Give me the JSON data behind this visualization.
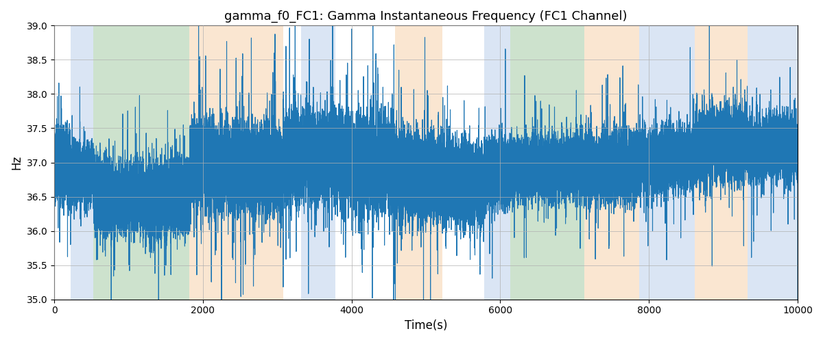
{
  "title": "gamma_f0_FC1: Gamma Instantaneous Frequency (FC1 Channel)",
  "xlabel": "Time(s)",
  "ylabel": "Hz",
  "xlim": [
    0,
    10000
  ],
  "ylim": [
    35.0,
    39.0
  ],
  "yticks": [
    35.0,
    35.5,
    36.0,
    36.5,
    37.0,
    37.5,
    38.0,
    38.5,
    39.0
  ],
  "xticks": [
    0,
    2000,
    4000,
    6000,
    8000,
    10000
  ],
  "line_color": "#1f77b4",
  "line_width": 0.8,
  "background_color": "#ffffff",
  "grid_color": "#b0b0b0",
  "bands": [
    {
      "xmin": 220,
      "xmax": 530,
      "color": "#aec6e8",
      "alpha": 0.45
    },
    {
      "xmin": 530,
      "xmax": 1820,
      "color": "#90c090",
      "alpha": 0.45
    },
    {
      "xmin": 1820,
      "xmax": 3080,
      "color": "#f5c89a",
      "alpha": 0.45
    },
    {
      "xmin": 3320,
      "xmax": 3780,
      "color": "#aec6e8",
      "alpha": 0.45
    },
    {
      "xmin": 4580,
      "xmax": 5220,
      "color": "#f5c89a",
      "alpha": 0.45
    },
    {
      "xmin": 5780,
      "xmax": 6130,
      "color": "#aec6e8",
      "alpha": 0.45
    },
    {
      "xmin": 6130,
      "xmax": 7130,
      "color": "#90c090",
      "alpha": 0.45
    },
    {
      "xmin": 7130,
      "xmax": 7870,
      "color": "#f5c89a",
      "alpha": 0.45
    },
    {
      "xmin": 7870,
      "xmax": 8620,
      "color": "#aec6e8",
      "alpha": 0.45
    },
    {
      "xmin": 8620,
      "xmax": 9330,
      "color": "#f5c89a",
      "alpha": 0.45
    },
    {
      "xmin": 9330,
      "xmax": 10000,
      "color": "#aec6e8",
      "alpha": 0.45
    }
  ],
  "seed": 42,
  "n_points": 50000,
  "figsize": [
    12.0,
    5.0
  ],
  "dpi": 100,
  "region_params": [
    {
      "xmin": 0,
      "xmax": 220,
      "mean": 36.85,
      "std": 0.35,
      "big_std": 0.9,
      "big_prob": 0.018
    },
    {
      "xmin": 220,
      "xmax": 530,
      "mean": 36.75,
      "std": 0.28,
      "big_std": 0.7,
      "big_prob": 0.015
    },
    {
      "xmin": 530,
      "xmax": 1820,
      "mean": 36.35,
      "std": 0.32,
      "big_std": 0.85,
      "big_prob": 0.025
    },
    {
      "xmin": 1820,
      "xmax": 3080,
      "mean": 36.8,
      "std": 0.38,
      "big_std": 1.0,
      "big_prob": 0.03
    },
    {
      "xmin": 3080,
      "xmax": 3320,
      "mean": 37.0,
      "std": 0.4,
      "big_std": 1.1,
      "big_prob": 0.03
    },
    {
      "xmin": 3320,
      "xmax": 3780,
      "mean": 37.1,
      "std": 0.38,
      "big_std": 1.0,
      "big_prob": 0.028
    },
    {
      "xmin": 3780,
      "xmax": 4580,
      "mean": 37.05,
      "std": 0.4,
      "big_std": 1.1,
      "big_prob": 0.028
    },
    {
      "xmin": 4580,
      "xmax": 5220,
      "mean": 36.9,
      "std": 0.38,
      "big_std": 0.95,
      "big_prob": 0.025
    },
    {
      "xmin": 5220,
      "xmax": 5780,
      "mean": 36.85,
      "std": 0.36,
      "big_std": 0.9,
      "big_prob": 0.022
    },
    {
      "xmin": 5780,
      "xmax": 6130,
      "mean": 37.0,
      "std": 0.3,
      "big_std": 0.8,
      "big_prob": 0.02
    },
    {
      "xmin": 6130,
      "xmax": 7130,
      "mean": 37.05,
      "std": 0.28,
      "big_std": 0.75,
      "big_prob": 0.02
    },
    {
      "xmin": 7130,
      "xmax": 7870,
      "mean": 37.0,
      "std": 0.3,
      "big_std": 0.8,
      "big_prob": 0.022
    },
    {
      "xmin": 7870,
      "xmax": 8620,
      "mean": 37.05,
      "std": 0.28,
      "big_std": 0.75,
      "big_prob": 0.02
    },
    {
      "xmin": 8620,
      "xmax": 9330,
      "mean": 37.2,
      "std": 0.32,
      "big_std": 0.9,
      "big_prob": 0.025
    },
    {
      "xmin": 9330,
      "xmax": 10000,
      "mean": 37.1,
      "std": 0.28,
      "big_std": 0.75,
      "big_prob": 0.018
    }
  ]
}
